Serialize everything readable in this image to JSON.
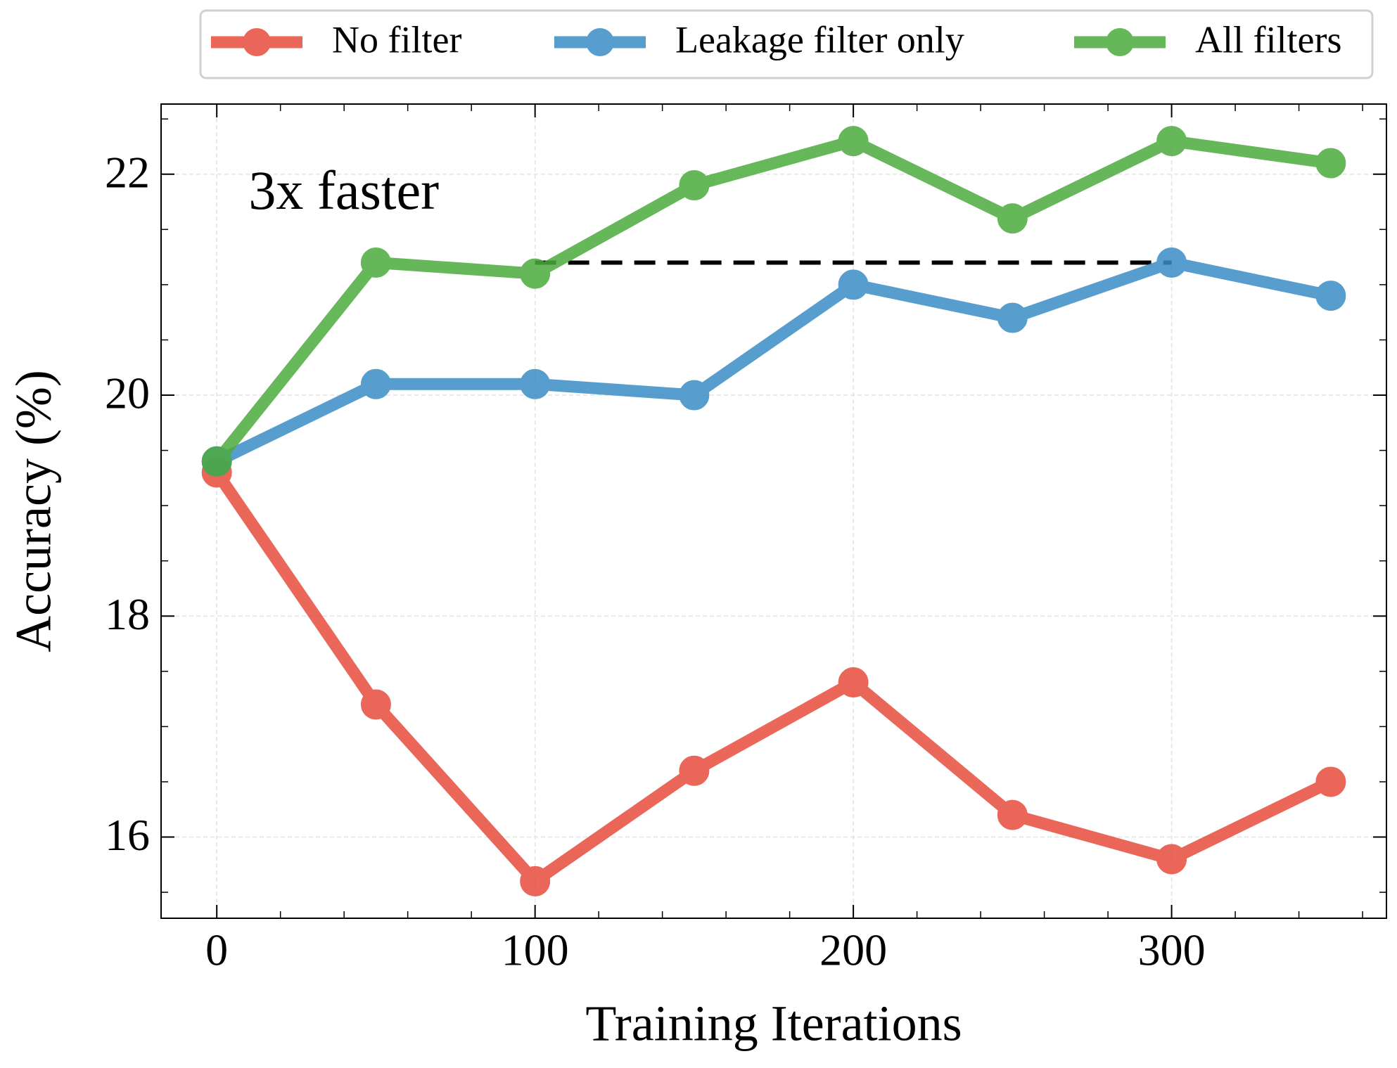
{
  "chart_data": {
    "type": "line",
    "x_label": "Training Iterations",
    "y_label": "Accuracy (%)",
    "x": [
      0,
      50,
      100,
      150,
      200,
      250,
      300,
      350
    ],
    "series": [
      {
        "name": "No filter",
        "color": "#e74c3c",
        "values": [
          19.3,
          17.2,
          15.6,
          16.6,
          17.4,
          16.2,
          15.8,
          16.5
        ]
      },
      {
        "name": "Leakage filter only",
        "color": "#3a8dc6",
        "values": [
          19.4,
          20.1,
          20.1,
          20.0,
          21.0,
          20.7,
          21.2,
          20.9
        ]
      },
      {
        "name": "All filters",
        "color": "#4caa3e",
        "values": [
          19.4,
          21.2,
          21.1,
          21.9,
          22.3,
          21.6,
          22.3,
          22.1
        ]
      }
    ],
    "xlim": [
      -17.5,
      367.5
    ],
    "xticks": [
      0,
      100,
      200,
      300
    ],
    "ylim": [
      15.265,
      22.635
    ],
    "yticks": [
      16,
      18,
      20,
      22
    ],
    "x_minor_step": 20,
    "y_minor_step": 0.5,
    "grid": true,
    "legend": "top",
    "annotations": [
      {
        "text": "3x faster",
        "x": 10,
        "y": 21.8
      }
    ],
    "reference_line": {
      "x": [
        100,
        300
      ],
      "y": 21.2
    }
  }
}
